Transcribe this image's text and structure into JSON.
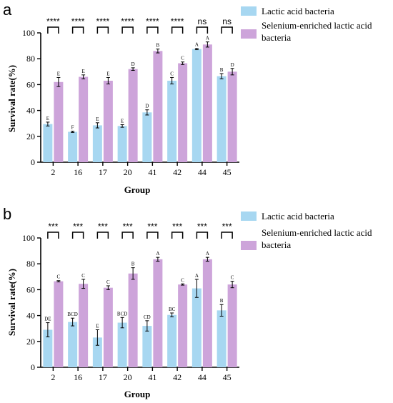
{
  "colors": {
    "lab": "#a7d7f1",
    "selab": "#cda4da",
    "axis": "#000000"
  },
  "chart_data": [
    {
      "type": "bar",
      "panel_label": "a",
      "categories": [
        "2",
        "16",
        "17",
        "20",
        "41",
        "42",
        "44",
        "45"
      ],
      "xlabel": "Group",
      "ylabel": "Survival rate(%)",
      "ylim": [
        0,
        100
      ],
      "yticks": [
        0,
        20,
        40,
        60,
        80,
        100
      ],
      "legend_position": "top-right",
      "series": [
        {
          "name": "Lactic acid bacteria",
          "values": [
            29.5,
            23.5,
            28.5,
            28,
            38.5,
            63,
            87.5,
            66.5
          ],
          "errors": [
            1.5,
            0.5,
            2,
            1,
            2,
            2.5,
            0.5,
            2
          ],
          "letters": [
            "E",
            "F",
            "E",
            "E",
            "D",
            "C",
            "A",
            "B"
          ]
        },
        {
          "name": "Selenium-enriched lactic acid bacteria",
          "values": [
            62,
            66,
            63,
            72,
            86,
            76.5,
            91,
            70
          ],
          "errors": [
            3.5,
            1.5,
            2.5,
            1,
            1.5,
            1,
            2,
            2.5
          ],
          "letters": [
            "E",
            "E",
            "E",
            "D",
            "B",
            "C",
            "A",
            "D"
          ]
        }
      ],
      "significance": [
        "****",
        "****",
        "****",
        "****",
        "****",
        "****",
        "ns",
        "ns"
      ]
    },
    {
      "type": "bar",
      "panel_label": "b",
      "categories": [
        "2",
        "16",
        "17",
        "20",
        "41",
        "42",
        "44",
        "45"
      ],
      "xlabel": "Group",
      "ylabel": "Survival rate(%)",
      "ylim": [
        0,
        100
      ],
      "yticks": [
        0,
        20,
        40,
        60,
        80,
        100
      ],
      "legend_position": "top-right",
      "series": [
        {
          "name": "Lactic acid bacteria",
          "values": [
            29,
            35,
            23,
            34.5,
            32,
            40.5,
            61,
            44
          ],
          "errors": [
            5.5,
            3,
            6,
            4,
            4,
            1.5,
            7,
            4.5
          ],
          "letters": [
            "DE",
            "BCD",
            "E",
            "BCD",
            "CD",
            "BC",
            "A",
            "B"
          ]
        },
        {
          "name": "Selenium-enriched lactic acid bacteria",
          "values": [
            66.5,
            64.5,
            61.5,
            72.5,
            83.5,
            64,
            83.5,
            64
          ],
          "errors": [
            0.5,
            3.5,
            1.5,
            4.5,
            1.5,
            0.5,
            1.5,
            2.5
          ],
          "letters": [
            "C",
            "C",
            "C",
            "B",
            "A",
            "C",
            "A",
            "C"
          ]
        }
      ],
      "significance": [
        "***",
        "***",
        "***",
        "***",
        "***",
        "***",
        "***",
        "***"
      ]
    }
  ]
}
